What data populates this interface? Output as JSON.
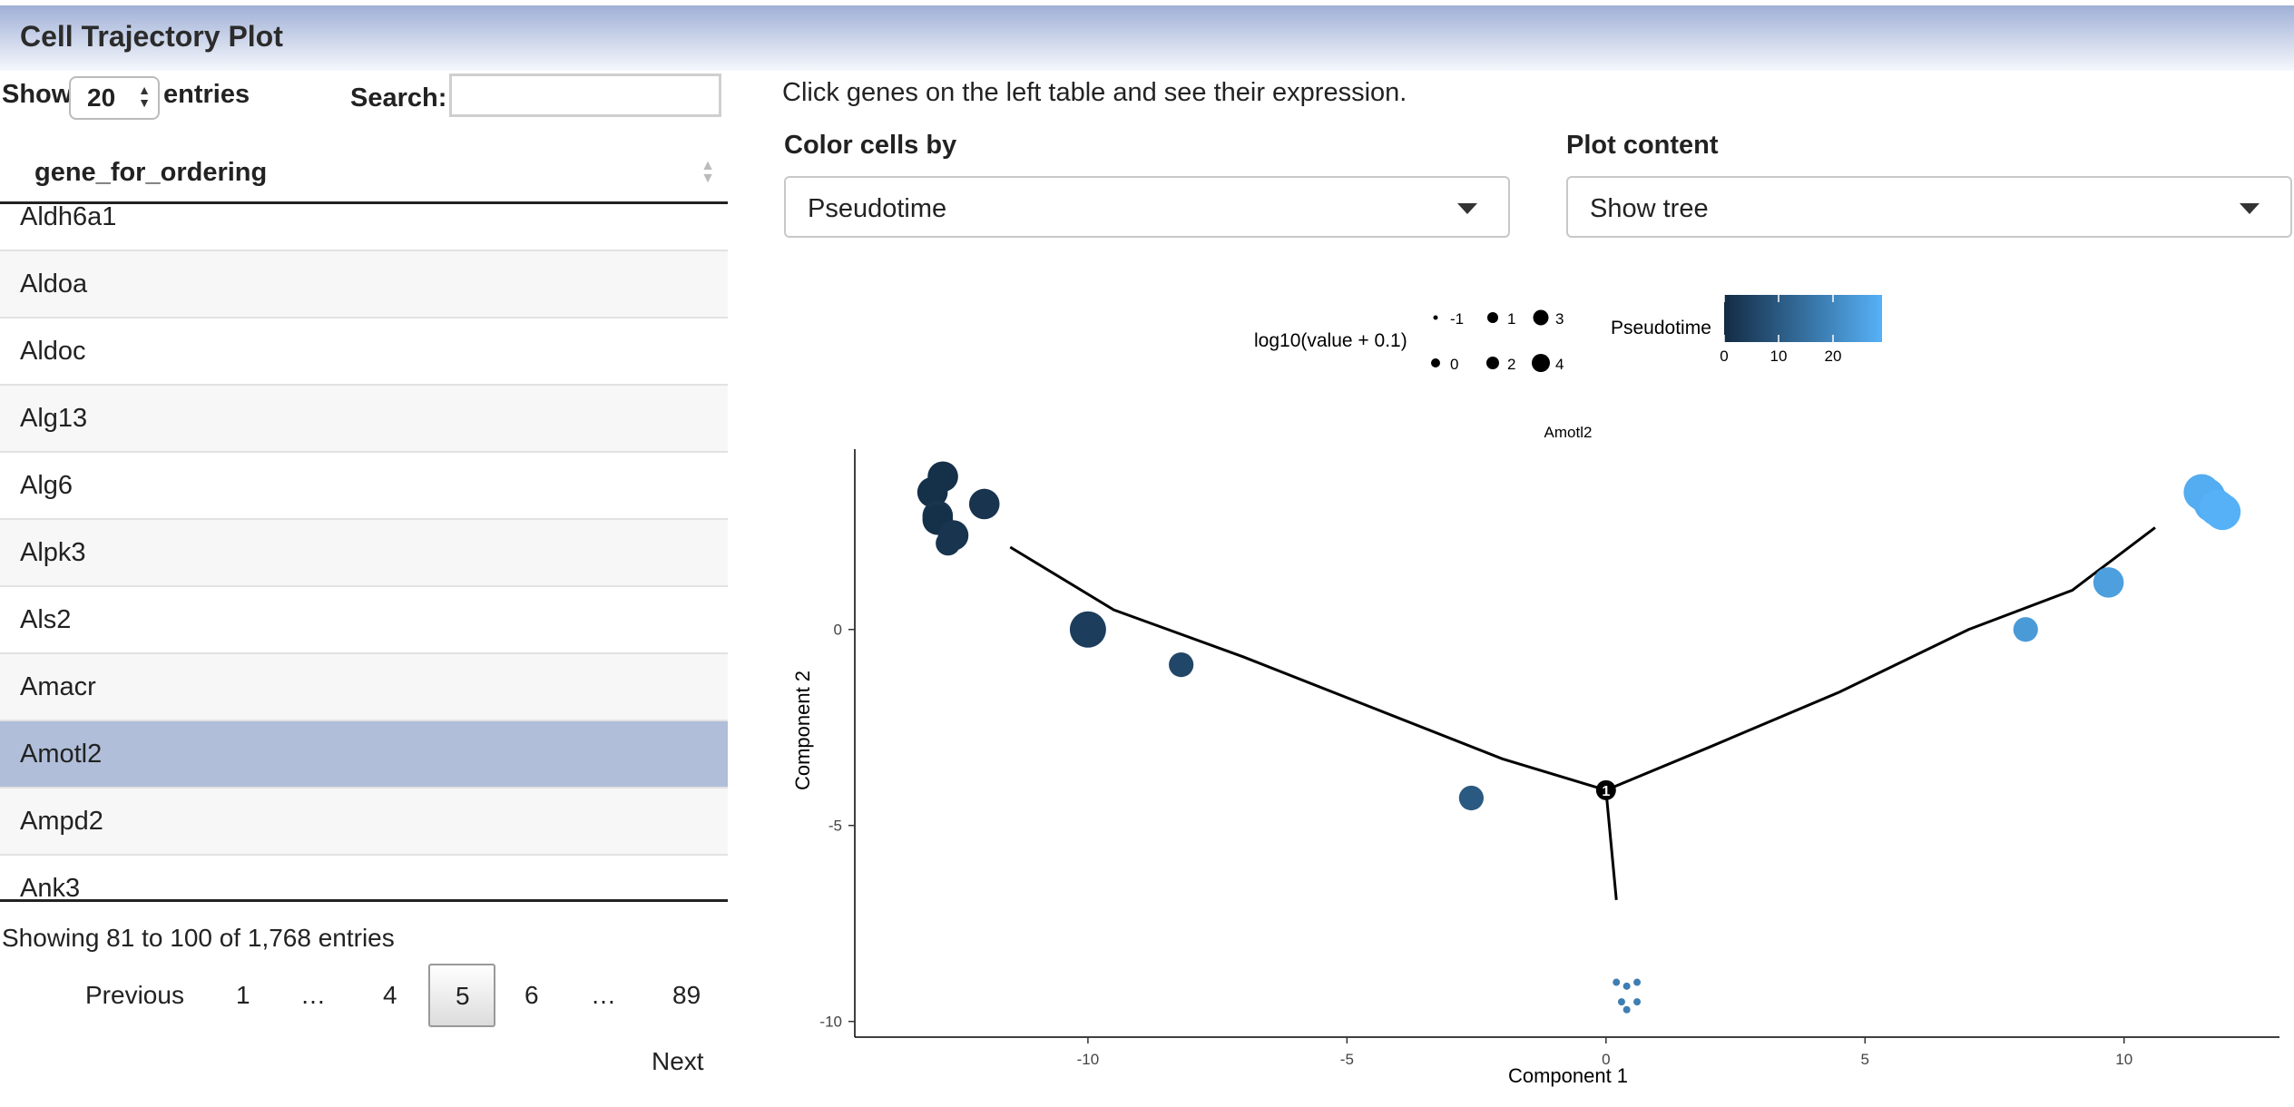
{
  "header": {
    "title": "Cell Trajectory Plot"
  },
  "table_controls": {
    "show_label": "Show",
    "entries_value": "20",
    "entries_label": "entries",
    "search_label": "Search:",
    "search_value": ""
  },
  "table": {
    "column_header": "gene_for_ordering",
    "rows": [
      "Aldh6a1",
      "Aldoa",
      "Aldoc",
      "Alg13",
      "Alg6",
      "Alpk3",
      "Als2",
      "Amacr",
      "Amotl2",
      "Ampd2",
      "Ank3"
    ],
    "selected_row": "Amotl2",
    "info": "Showing 81 to 100 of 1,768 entries"
  },
  "pagination": {
    "previous": "Previous",
    "pages": [
      "1",
      "…",
      "4",
      "5",
      "6",
      "…",
      "89"
    ],
    "current": "5",
    "next": "Next"
  },
  "controls": {
    "hint": "Click genes on the left table and see their expression.",
    "color_label": "Color cells by",
    "color_value": "Pseudotime",
    "content_label": "Plot content",
    "content_value": "Show tree"
  },
  "chart_data": {
    "type": "scatter",
    "title": "Amotl2",
    "xlabel": "Component 1",
    "ylabel": "Component 2",
    "xlim": [
      -14.5,
      13
    ],
    "ylim": [
      -10.4,
      4.6
    ],
    "xticks": [
      -10,
      -5,
      0,
      5,
      10
    ],
    "yticks": [
      0,
      -5,
      -10
    ],
    "size_legend": {
      "title": "log10(value + 0.1)",
      "items": [
        {
          "label": "-1",
          "r": 2.5
        },
        {
          "label": "1",
          "r": 6
        },
        {
          "label": "3",
          "r": 8.5
        },
        {
          "label": "0",
          "r": 5
        },
        {
          "label": "2",
          "r": 7
        },
        {
          "label": "4",
          "r": 10
        }
      ]
    },
    "color_legend": {
      "title": "Pseudotime",
      "ticks": [
        "0",
        "10",
        "20"
      ],
      "low_color": "#132b43",
      "high_color": "#56b1f7",
      "range": [
        0,
        29
      ]
    },
    "points": [
      {
        "x": -12.8,
        "y": 3.9,
        "size": 3,
        "pt": 1
      },
      {
        "x": -13.0,
        "y": 3.5,
        "size": 3,
        "pt": 1
      },
      {
        "x": -12.9,
        "y": 2.9,
        "size": 3,
        "pt": 2
      },
      {
        "x": -12.9,
        "y": 2.8,
        "size": 3,
        "pt": 1
      },
      {
        "x": -12.6,
        "y": 2.4,
        "size": 3,
        "pt": 2
      },
      {
        "x": -12.7,
        "y": 2.2,
        "size": 2,
        "pt": 2
      },
      {
        "x": -12.0,
        "y": 3.2,
        "size": 3,
        "pt": 2
      },
      {
        "x": -10.0,
        "y": 0.0,
        "size": 4,
        "pt": 4
      },
      {
        "x": -8.2,
        "y": -0.9,
        "size": 2,
        "pt": 6
      },
      {
        "x": -2.6,
        "y": -4.3,
        "size": 2,
        "pt": 10
      },
      {
        "x": 0.2,
        "y": -9.0,
        "size": -1,
        "pt": 18
      },
      {
        "x": 0.4,
        "y": -9.1,
        "size": -1,
        "pt": 18
      },
      {
        "x": 0.6,
        "y": -9.0,
        "size": -1,
        "pt": 18
      },
      {
        "x": 0.3,
        "y": -9.5,
        "size": -1,
        "pt": 18
      },
      {
        "x": 0.6,
        "y": -9.5,
        "size": -1,
        "pt": 18
      },
      {
        "x": 0.4,
        "y": -9.7,
        "size": -1,
        "pt": 18
      },
      {
        "x": 8.1,
        "y": 0.0,
        "size": 2,
        "pt": 24
      },
      {
        "x": 9.7,
        "y": 1.2,
        "size": 3,
        "pt": 25
      },
      {
        "x": 11.5,
        "y": 3.5,
        "size": 4,
        "pt": 28
      },
      {
        "x": 11.6,
        "y": 3.4,
        "size": 4,
        "pt": 28
      },
      {
        "x": 11.7,
        "y": 3.2,
        "size": 4,
        "pt": 28
      },
      {
        "x": 11.8,
        "y": 3.1,
        "size": 4,
        "pt": 29
      },
      {
        "x": 11.9,
        "y": 3.0,
        "size": 4,
        "pt": 29
      }
    ],
    "tree_segments": [
      [
        [
          -11.5,
          2.1
        ],
        [
          -9.5,
          0.5
        ],
        [
          -7.0,
          -0.7
        ],
        [
          -4.5,
          -2.0
        ],
        [
          -2.0,
          -3.3
        ],
        [
          0.0,
          -4.1
        ]
      ],
      [
        [
          0.0,
          -4.1
        ],
        [
          2.0,
          -3.0
        ],
        [
          4.5,
          -1.6
        ],
        [
          7.0,
          0.0
        ],
        [
          9.0,
          1.0
        ],
        [
          10.6,
          2.6
        ]
      ],
      [
        [
          0.0,
          -4.1
        ],
        [
          0.2,
          -6.9
        ]
      ]
    ],
    "branch_point": {
      "x": 0.0,
      "y": -4.1,
      "label": "1"
    }
  }
}
